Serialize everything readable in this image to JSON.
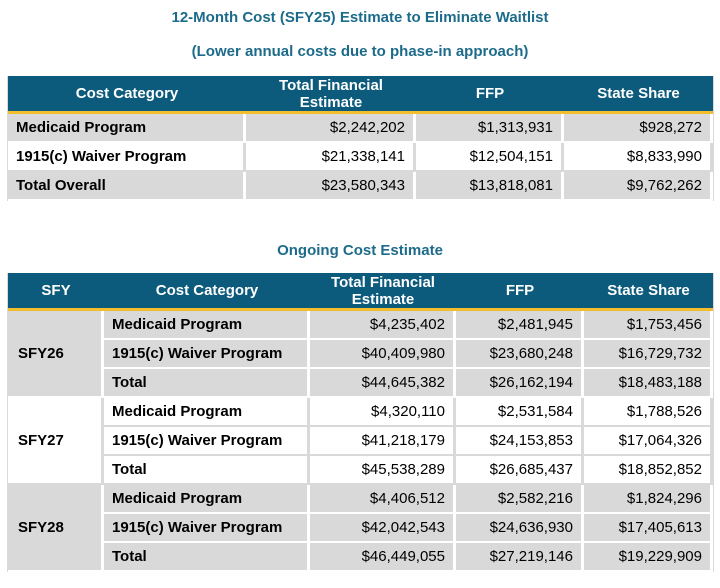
{
  "titles": {
    "main": "12-Month Cost (SFY25) Estimate to Eliminate Waitlist",
    "sub": "(Lower annual costs due to phase-in approach)",
    "ongoing": "Ongoing Cost Estimate"
  },
  "table1": {
    "headers": [
      "Cost Category",
      "Total Financial Estimate",
      "FFP",
      "State Share"
    ],
    "rows": [
      {
        "category": "Medicaid Program",
        "total": "$2,242,202",
        "ffp": "$1,313,931",
        "state": "$928,272"
      },
      {
        "category": "1915(c) Waiver Program",
        "total": "$21,338,141",
        "ffp": "$12,504,151",
        "state": "$8,833,990"
      },
      {
        "category": "Total Overall",
        "total": "$23,580,343",
        "ffp": "$13,818,081",
        "state": "$9,762,262"
      }
    ]
  },
  "table2": {
    "headers": [
      "SFY",
      "Cost Category",
      "Total Financial Estimate",
      "FFP",
      "State Share"
    ],
    "groups": [
      {
        "sfy": "SFY26",
        "rows": [
          {
            "category": "Medicaid Program",
            "total": "$4,235,402",
            "ffp": "$2,481,945",
            "state": "$1,753,456"
          },
          {
            "category": "1915(c) Waiver Program",
            "total": "$40,409,980",
            "ffp": "$23,680,248",
            "state": "$16,729,732"
          },
          {
            "category": "Total",
            "total": "$44,645,382",
            "ffp": "$26,162,194",
            "state": "$18,483,188"
          }
        ]
      },
      {
        "sfy": "SFY27",
        "rows": [
          {
            "category": "Medicaid Program",
            "total": "$4,320,110",
            "ffp": "$2,531,584",
            "state": "$1,788,526"
          },
          {
            "category": "1915(c) Waiver Program",
            "total": "$41,218,179",
            "ffp": "$24,153,853",
            "state": "$17,064,326"
          },
          {
            "category": "Total",
            "total": "$45,538,289",
            "ffp": "$26,685,437",
            "state": "$18,852,852"
          }
        ]
      },
      {
        "sfy": "SFY28",
        "rows": [
          {
            "category": "Medicaid Program",
            "total": "$4,406,512",
            "ffp": "$2,582,216",
            "state": "$1,824,296"
          },
          {
            "category": "1915(c) Waiver Program",
            "total": "$42,042,543",
            "ffp": "$24,636,930",
            "state": "$17,405,613"
          },
          {
            "category": "Total",
            "total": "$46,449,055",
            "ffp": "$27,219,146",
            "state": "$19,229,909"
          }
        ]
      }
    ]
  }
}
